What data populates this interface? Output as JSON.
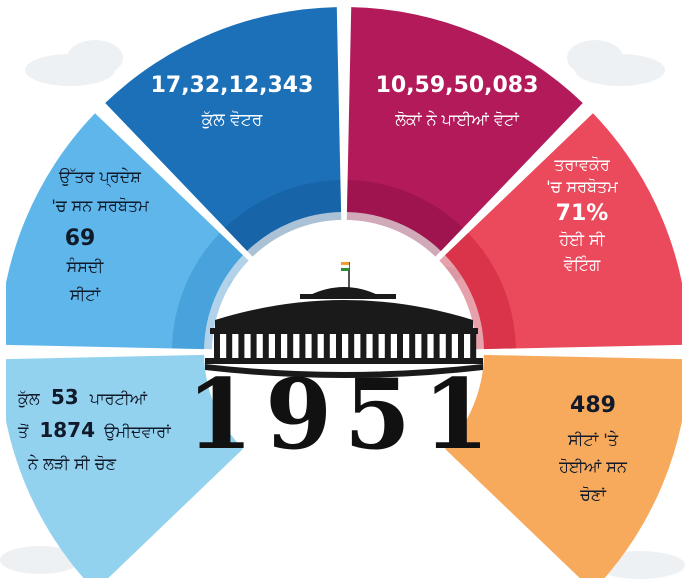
{
  "year": "1951",
  "colors": {
    "top_left": "#1c70b8",
    "top_right": "#b21a5a",
    "mid_left": "#5fb6ea",
    "mid_right": "#ea4a5c",
    "bot_left": "#93d2ef",
    "bot_right": "#f7a95c"
  },
  "segments": {
    "top_left": {
      "number": "17,32,12,343",
      "label": "ਕੁੱਲ ਵੋਟਰ"
    },
    "top_right": {
      "number": "10,59,50,083",
      "label": "ਲੋਕਾਂ ਨੇ ਪਾਈਆਂ ਵੋਟਾਂ"
    },
    "mid_left": {
      "line1": "ਉੱਤਰ ਪ੍ਰਦੇਸ਼",
      "line2": "'ਚ ਸਨ ਸਰਬੋਤਮ",
      "number": "69",
      "line3": "ਸੰਸਦੀ",
      "line4": "ਸੀਟਾਂ"
    },
    "mid_right": {
      "line1": "ਤਰਾਵਕੋਰ",
      "line2": "'ਚ ਸਰਬੋਤਮ",
      "number": "71%",
      "line3": "ਹੋਈ ਸੀ",
      "line4": "ਵੋਟਿੰਗ"
    },
    "bot_left": {
      "line1_a": "ਕੁੱਲ",
      "line1_num": "53",
      "line1_b": "ਪਾਰਟੀਆਂ",
      "line2_a": "ਤੋਂ",
      "line2_num": "1874",
      "line2_b": "ਉਮੀਦਵਾਰਾਂ",
      "line3": "ਨੇ ਲੜੀ ਸੀ ਚੋਣ"
    },
    "bot_right": {
      "number": "489",
      "line1": "ਸੀਟਾਂ 'ਤੇ",
      "line2": "ਹੋਈਆਂ ਸਨ",
      "line3": "ਚੋਣਾਂ"
    }
  }
}
